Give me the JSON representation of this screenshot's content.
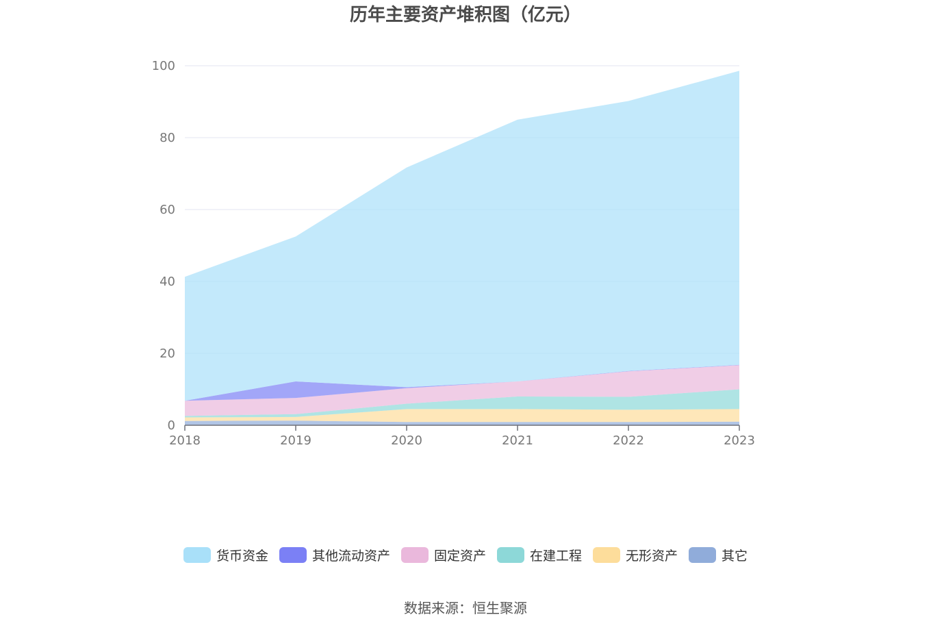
{
  "chart_data": {
    "type": "area",
    "stacked": true,
    "title": "历年主要资产堆积图（亿元）",
    "x": [
      "2018",
      "2019",
      "2020",
      "2021",
      "2022",
      "2023"
    ],
    "ylim": [
      0,
      100
    ],
    "yticks": [
      "0",
      "20",
      "40",
      "60",
      "80",
      "100"
    ],
    "grid": true,
    "legend_position": "bottom",
    "series": [
      {
        "name": "其它",
        "color": "#90acda",
        "values": [
          1.2,
          1.3,
          0.9,
          0.9,
          0.9,
          1.0
        ]
      },
      {
        "name": "无形资产",
        "color": "#fddd9b",
        "values": [
          1.0,
          1.0,
          3.6,
          3.6,
          3.4,
          3.5
        ]
      },
      {
        "name": "在建工程",
        "color": "#8dd8d8",
        "values": [
          0.4,
          0.8,
          1.5,
          3.5,
          3.6,
          5.5
        ]
      },
      {
        "name": "固定资产",
        "color": "#eab8dc",
        "values": [
          4.2,
          4.5,
          4.3,
          4.2,
          7.1,
          6.7
        ]
      },
      {
        "name": "其他流动资产",
        "color": "#7b80f5",
        "values": [
          0.0,
          4.6,
          0.3,
          0.0,
          0.1,
          0.1
        ]
      },
      {
        "name": "货币资金",
        "color": "#a9e0f9",
        "values": [
          34.5,
          40.3,
          61.1,
          72.8,
          75.1,
          81.8
        ]
      }
    ]
  },
  "legend_order": [
    {
      "name": "货币资金",
      "color": "#a9e0f9"
    },
    {
      "name": "其他流动资产",
      "color": "#7b80f5"
    },
    {
      "name": "固定资产",
      "color": "#eab8dc"
    },
    {
      "name": "在建工程",
      "color": "#8dd8d8"
    },
    {
      "name": "无形资产",
      "color": "#fddd9b"
    },
    {
      "name": "其它",
      "color": "#90acda"
    }
  ],
  "source_note": "数据来源：恒生聚源"
}
